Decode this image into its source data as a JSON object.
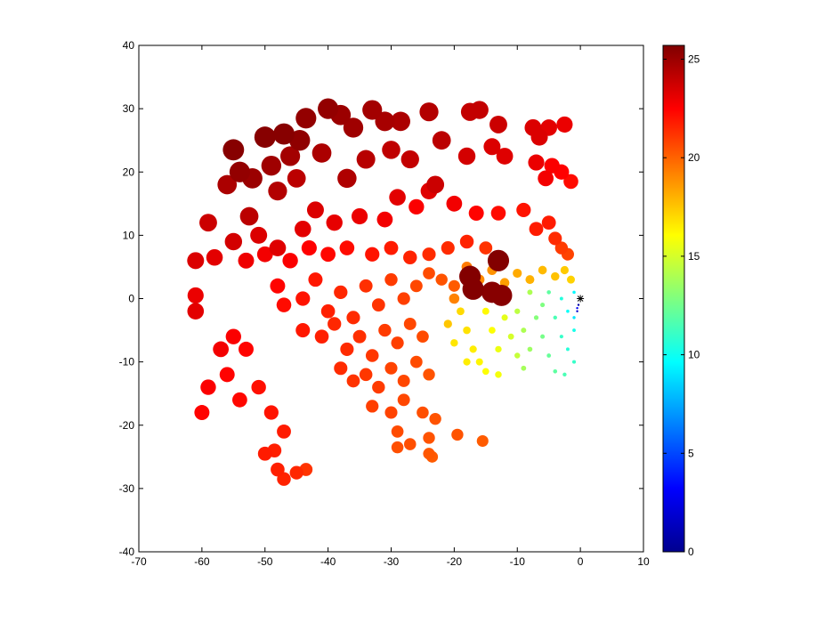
{
  "chart_data": {
    "type": "scatter",
    "title": "",
    "xlabel": "",
    "ylabel": "",
    "xlim": [
      -70,
      10
    ],
    "ylim": [
      -40,
      40
    ],
    "x_ticks": [
      "-70",
      "-60",
      "-50",
      "-40",
      "-30",
      "-20",
      "-10",
      "0",
      "10"
    ],
    "y_ticks": [
      "-40",
      "-30",
      "-20",
      "-10",
      "0",
      "10",
      "20",
      "30",
      "40"
    ],
    "colorbar": {
      "colormap": "jet",
      "range": [
        0,
        25.7
      ],
      "ticks": [
        "0",
        "5",
        "10",
        "15",
        "20",
        "25"
      ]
    },
    "marker_note": "marker size and color both increase with the color value (0 to ~25.7)",
    "origin_marker": {
      "x": 0,
      "y": 0,
      "symbol": "*"
    },
    "points": [
      {
        "x": -55,
        "y": 23.5,
        "c": 25.5
      },
      {
        "x": -50,
        "y": 25.5,
        "c": 25.5
      },
      {
        "x": -47,
        "y": 26,
        "c": 25.5
      },
      {
        "x": -44.5,
        "y": 25,
        "c": 25.3
      },
      {
        "x": -43.5,
        "y": 28.5,
        "c": 25.2
      },
      {
        "x": -40,
        "y": 30,
        "c": 25.2
      },
      {
        "x": -38,
        "y": 29,
        "c": 25
      },
      {
        "x": -36,
        "y": 27,
        "c": 24.9
      },
      {
        "x": -33,
        "y": 29.8,
        "c": 24.8
      },
      {
        "x": -31,
        "y": 28,
        "c": 24.7
      },
      {
        "x": -28.5,
        "y": 28,
        "c": 24.6
      },
      {
        "x": -24,
        "y": 29.5,
        "c": 24.4
      },
      {
        "x": -22,
        "y": 25,
        "c": 24.2
      },
      {
        "x": -17.5,
        "y": 29.5,
        "c": 24
      },
      {
        "x": -16,
        "y": 29.8,
        "c": 24
      },
      {
        "x": -13,
        "y": 27.5,
        "c": 23.8
      },
      {
        "x": -7.5,
        "y": 27,
        "c": 23.4
      },
      {
        "x": -6.5,
        "y": 25.5,
        "c": 23.4
      },
      {
        "x": -5,
        "y": 27,
        "c": 23.2
      },
      {
        "x": -2.5,
        "y": 27.5,
        "c": 23
      },
      {
        "x": -54,
        "y": 20,
        "c": 25.2
      },
      {
        "x": -52,
        "y": 19,
        "c": 25
      },
      {
        "x": -49,
        "y": 21,
        "c": 24.9
      },
      {
        "x": -46,
        "y": 22.5,
        "c": 24.8
      },
      {
        "x": -41,
        "y": 23,
        "c": 24.6
      },
      {
        "x": -37,
        "y": 19,
        "c": 24.5
      },
      {
        "x": -34,
        "y": 22,
        "c": 24.3
      },
      {
        "x": -30,
        "y": 23.5,
        "c": 24.1
      },
      {
        "x": -27,
        "y": 22,
        "c": 24
      },
      {
        "x": -23,
        "y": 18,
        "c": 23.8
      },
      {
        "x": -18,
        "y": 22.5,
        "c": 23.6
      },
      {
        "x": -14,
        "y": 24,
        "c": 23.4
      },
      {
        "x": -12,
        "y": 22.5,
        "c": 23.3
      },
      {
        "x": -7,
        "y": 21.5,
        "c": 23
      },
      {
        "x": -5.5,
        "y": 19,
        "c": 22.8
      },
      {
        "x": -4.5,
        "y": 21,
        "c": 22.6
      },
      {
        "x": -3,
        "y": 20,
        "c": 22.5
      },
      {
        "x": -1.5,
        "y": 18.5,
        "c": 22.2
      },
      {
        "x": -56,
        "y": 18,
        "c": 24.6
      },
      {
        "x": -48,
        "y": 17,
        "c": 24.4
      },
      {
        "x": -45,
        "y": 19,
        "c": 24.2
      },
      {
        "x": -52.5,
        "y": 13,
        "c": 24.2
      },
      {
        "x": -59,
        "y": 12,
        "c": 23.8
      },
      {
        "x": -55,
        "y": 9,
        "c": 23.6
      },
      {
        "x": -51,
        "y": 10,
        "c": 23.4
      },
      {
        "x": -48,
        "y": 8,
        "c": 23.3
      },
      {
        "x": -44,
        "y": 11,
        "c": 23.2
      },
      {
        "x": -42,
        "y": 14,
        "c": 23.4
      },
      {
        "x": -39,
        "y": 12,
        "c": 23.1
      },
      {
        "x": -35,
        "y": 13,
        "c": 23
      },
      {
        "x": -31,
        "y": 12.5,
        "c": 22.8
      },
      {
        "x": -29,
        "y": 16,
        "c": 23.2
      },
      {
        "x": -26,
        "y": 14.5,
        "c": 22.6
      },
      {
        "x": -24,
        "y": 17,
        "c": 23.3
      },
      {
        "x": -20,
        "y": 15,
        "c": 22.8
      },
      {
        "x": -16.5,
        "y": 13.5,
        "c": 22.4
      },
      {
        "x": -13,
        "y": 13.5,
        "c": 22.2
      },
      {
        "x": -9,
        "y": 14,
        "c": 22
      },
      {
        "x": -7,
        "y": 11,
        "c": 21.8
      },
      {
        "x": -5,
        "y": 12,
        "c": 21.8
      },
      {
        "x": -4,
        "y": 9.5,
        "c": 21.4
      },
      {
        "x": -3,
        "y": 8,
        "c": 21
      },
      {
        "x": -2,
        "y": 7,
        "c": 20.8
      },
      {
        "x": -61,
        "y": 6,
        "c": 23.4
      },
      {
        "x": -58,
        "y": 6.5,
        "c": 23.2
      },
      {
        "x": -53,
        "y": 6,
        "c": 22.9
      },
      {
        "x": -50,
        "y": 7,
        "c": 22.8
      },
      {
        "x": -46,
        "y": 6,
        "c": 22.6
      },
      {
        "x": -43,
        "y": 8,
        "c": 22.5
      },
      {
        "x": -40,
        "y": 7,
        "c": 22.3
      },
      {
        "x": -37,
        "y": 8,
        "c": 22.2
      },
      {
        "x": -33,
        "y": 7,
        "c": 22
      },
      {
        "x": -30,
        "y": 8,
        "c": 21.8
      },
      {
        "x": -27,
        "y": 6.5,
        "c": 21.6
      },
      {
        "x": -24,
        "y": 7,
        "c": 21.4
      },
      {
        "x": -21,
        "y": 8,
        "c": 21.4
      },
      {
        "x": -18,
        "y": 9,
        "c": 21.6
      },
      {
        "x": -15,
        "y": 8,
        "c": 21.2
      },
      {
        "x": -61,
        "y": -2,
        "c": 23.2
      },
      {
        "x": -61,
        "y": 0.5,
        "c": 23
      },
      {
        "x": -57,
        "y": -8,
        "c": 22.8
      },
      {
        "x": -55,
        "y": -6,
        "c": 22.6
      },
      {
        "x": -53,
        "y": -8,
        "c": 22.4
      },
      {
        "x": -59,
        "y": -14,
        "c": 22.6
      },
      {
        "x": -56,
        "y": -12,
        "c": 22.4
      },
      {
        "x": -54,
        "y": -16,
        "c": 22.3
      },
      {
        "x": -51,
        "y": -14,
        "c": 22.1
      },
      {
        "x": -49,
        "y": -18,
        "c": 22
      },
      {
        "x": -60,
        "y": -18,
        "c": 22.4
      },
      {
        "x": -47,
        "y": -21,
        "c": 21.8
      },
      {
        "x": -48.5,
        "y": -24,
        "c": 21.7
      },
      {
        "x": -50,
        "y": -24.5,
        "c": 21.8
      },
      {
        "x": -47,
        "y": -28.5,
        "c": 21.6
      },
      {
        "x": -48,
        "y": -27,
        "c": 21.7
      },
      {
        "x": -45,
        "y": -27.5,
        "c": 21.5
      },
      {
        "x": -43.5,
        "y": -27,
        "c": 21.2
      },
      {
        "x": -48,
        "y": 2,
        "c": 22.4
      },
      {
        "x": -47,
        "y": -1,
        "c": 22.2
      },
      {
        "x": -44,
        "y": 0,
        "c": 22
      },
      {
        "x": -42,
        "y": 3,
        "c": 21.9
      },
      {
        "x": -40,
        "y": -2,
        "c": 21.7
      },
      {
        "x": -38,
        "y": 1,
        "c": 21.5
      },
      {
        "x": -36,
        "y": -3,
        "c": 21.4
      },
      {
        "x": -34,
        "y": 2,
        "c": 21.3
      },
      {
        "x": -32,
        "y": -1,
        "c": 21.2
      },
      {
        "x": -30,
        "y": 3,
        "c": 21
      },
      {
        "x": -28,
        "y": 0,
        "c": 20.9
      },
      {
        "x": -26,
        "y": 2,
        "c": 20.7
      },
      {
        "x": -24,
        "y": 4,
        "c": 20.6
      },
      {
        "x": -22,
        "y": 3,
        "c": 20.4
      },
      {
        "x": -20,
        "y": 2,
        "c": 20.2
      },
      {
        "x": -44,
        "y": -5,
        "c": 21.9
      },
      {
        "x": -41,
        "y": -6,
        "c": 21.7
      },
      {
        "x": -39,
        "y": -4,
        "c": 21.5
      },
      {
        "x": -37,
        "y": -8,
        "c": 21.4
      },
      {
        "x": -35,
        "y": -6,
        "c": 21.3
      },
      {
        "x": -33,
        "y": -9,
        "c": 21.1
      },
      {
        "x": -31,
        "y": -5,
        "c": 21
      },
      {
        "x": -29,
        "y": -7,
        "c": 20.9
      },
      {
        "x": -27,
        "y": -4,
        "c": 20.7
      },
      {
        "x": -25,
        "y": -6,
        "c": 20.6
      },
      {
        "x": -38,
        "y": -11,
        "c": 21.4
      },
      {
        "x": -36,
        "y": -13,
        "c": 21.2
      },
      {
        "x": -34,
        "y": -12,
        "c": 21.1
      },
      {
        "x": -32,
        "y": -14,
        "c": 21
      },
      {
        "x": -30,
        "y": -11,
        "c": 20.8
      },
      {
        "x": -28,
        "y": -13,
        "c": 20.7
      },
      {
        "x": -26,
        "y": -10,
        "c": 20.6
      },
      {
        "x": -24,
        "y": -12,
        "c": 20.4
      },
      {
        "x": -33,
        "y": -17,
        "c": 20.9
      },
      {
        "x": -30,
        "y": -18,
        "c": 20.8
      },
      {
        "x": -28,
        "y": -16,
        "c": 20.7
      },
      {
        "x": -25,
        "y": -18,
        "c": 20.5
      },
      {
        "x": -23,
        "y": -19,
        "c": 20.4
      },
      {
        "x": -29,
        "y": -21,
        "c": 20.6
      },
      {
        "x": -27,
        "y": -23,
        "c": 20.5
      },
      {
        "x": -24,
        "y": -22,
        "c": 20.4
      },
      {
        "x": -29,
        "y": -23.5,
        "c": 20.5
      },
      {
        "x": -24,
        "y": -24.5,
        "c": 20.3
      },
      {
        "x": -23.5,
        "y": -25,
        "c": 20.2
      },
      {
        "x": -19.5,
        "y": -21.5,
        "c": 20.4
      },
      {
        "x": -15.5,
        "y": -22.5,
        "c": 20.2
      },
      {
        "x": -18,
        "y": 5,
        "c": 19.4
      },
      {
        "x": -16,
        "y": 3,
        "c": 19
      },
      {
        "x": -14,
        "y": 4.5,
        "c": 18.8
      },
      {
        "x": -12,
        "y": 2.5,
        "c": 18.5
      },
      {
        "x": -10,
        "y": 4,
        "c": 18.2
      },
      {
        "x": -8,
        "y": 3,
        "c": 18
      },
      {
        "x": -6,
        "y": 4.5,
        "c": 17.8
      },
      {
        "x": -4,
        "y": 3.5,
        "c": 17.6
      },
      {
        "x": -2.5,
        "y": 4.5,
        "c": 17.4
      },
      {
        "x": -1.5,
        "y": 3,
        "c": 17.2
      },
      {
        "x": -20,
        "y": 0,
        "c": 19.2
      },
      {
        "x": -21,
        "y": -4,
        "c": 17.5
      },
      {
        "x": -19,
        "y": -2,
        "c": 17
      },
      {
        "x": -18,
        "y": -5,
        "c": 16.8
      },
      {
        "x": -20,
        "y": -7,
        "c": 16.7
      },
      {
        "x": -17,
        "y": -8,
        "c": 16.5
      },
      {
        "x": -16,
        "y": -10,
        "c": 16.3
      },
      {
        "x": -18,
        "y": -10,
        "c": 16.5
      },
      {
        "x": -15,
        "y": -11.5,
        "c": 16
      },
      {
        "x": -13,
        "y": -12,
        "c": 15.8
      },
      {
        "x": -14,
        "y": -5,
        "c": 16
      },
      {
        "x": -15,
        "y": -2,
        "c": 16.2
      },
      {
        "x": -13,
        "y": -8,
        "c": 15.6
      },
      {
        "x": -12,
        "y": -3,
        "c": 15.4
      },
      {
        "x": -11,
        "y": -6,
        "c": 15
      },
      {
        "x": -10,
        "y": -9,
        "c": 14.6
      },
      {
        "x": -12,
        "y": 0,
        "c": 15.6
      },
      {
        "x": -10,
        "y": -2,
        "c": 14.4
      },
      {
        "x": -9,
        "y": -5,
        "c": 14
      },
      {
        "x": -8,
        "y": -8,
        "c": 13.6
      },
      {
        "x": -9,
        "y": -11,
        "c": 13.8
      },
      {
        "x": -7,
        "y": -3,
        "c": 13
      },
      {
        "x": -6,
        "y": -6,
        "c": 12.6
      },
      {
        "x": -5,
        "y": -9,
        "c": 12.2
      },
      {
        "x": -4,
        "y": -11.5,
        "c": 12
      },
      {
        "x": -2.5,
        "y": -12,
        "c": 11.5
      },
      {
        "x": -1,
        "y": -10,
        "c": 11
      },
      {
        "x": -8,
        "y": 1,
        "c": 14
      },
      {
        "x": -6,
        "y": -1,
        "c": 12.8
      },
      {
        "x": -4,
        "y": -3,
        "c": 11.5
      },
      {
        "x": -3,
        "y": -6,
        "c": 11
      },
      {
        "x": -2,
        "y": -8,
        "c": 10.6
      },
      {
        "x": -1,
        "y": -5,
        "c": 10.2
      },
      {
        "x": -5,
        "y": 1,
        "c": 12
      },
      {
        "x": -3,
        "y": 0,
        "c": 10.5
      },
      {
        "x": -2,
        "y": -2,
        "c": 9.8
      },
      {
        "x": -1,
        "y": 1,
        "c": 9.5
      },
      {
        "x": -1,
        "y": -3,
        "c": 9
      },
      {
        "x": -0.5,
        "y": -1.5,
        "c": 3
      },
      {
        "x": -0.5,
        "y": -2,
        "c": 2
      },
      {
        "x": -0.3,
        "y": -1,
        "c": 1
      },
      {
        "x": -17.5,
        "y": 3.5,
        "c": 25.6
      },
      {
        "x": -17,
        "y": 1.5,
        "c": 25.6
      },
      {
        "x": -13,
        "y": 6,
        "c": 25.6
      },
      {
        "x": -12.5,
        "y": 0.5,
        "c": 25.5
      },
      {
        "x": -14,
        "y": 1,
        "c": 25.5
      }
    ]
  }
}
